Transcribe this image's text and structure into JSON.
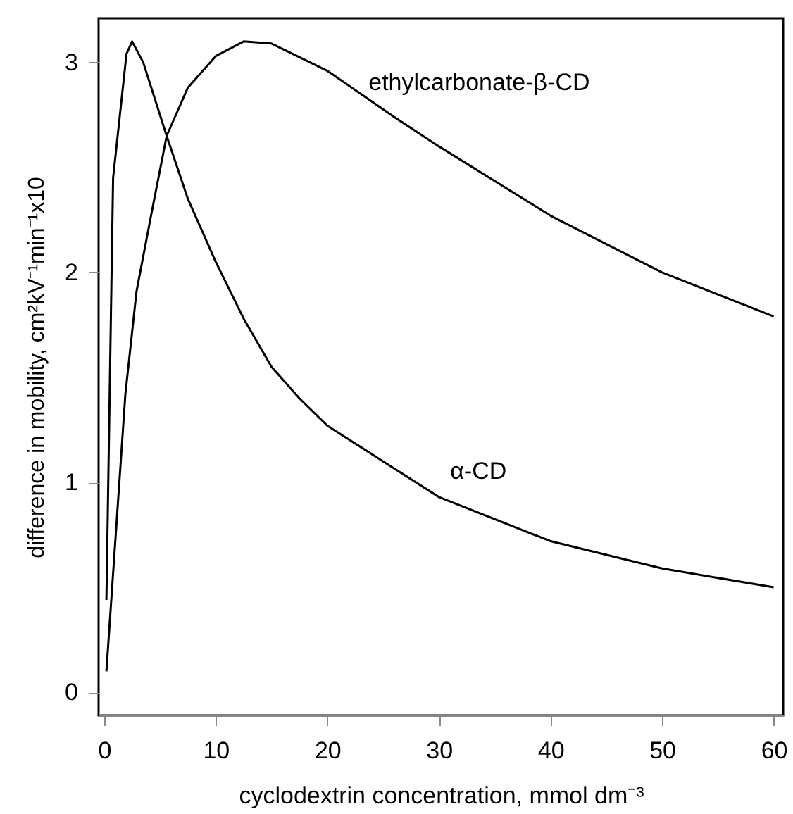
{
  "chart_data": {
    "type": "line",
    "xlabel": "cyclodextrin concentration, mmol dm⁻³",
    "ylabel": "difference in mobility, cm²kV⁻¹min⁻¹x10",
    "xlim": [
      -0.5,
      60.85
    ],
    "ylim": [
      -0.11,
      3.21
    ],
    "xticks": [
      0,
      10,
      20,
      30,
      40,
      50,
      60
    ],
    "yticks": [
      0,
      1,
      2,
      3
    ],
    "grid": false,
    "marker": "none",
    "line_style": "solid",
    "series": [
      {
        "name": "α-CD",
        "color": "#000000",
        "x": [
          0.2,
          0.8,
          2,
          2.5,
          3.5,
          5.6,
          7.5,
          10,
          12.5,
          15,
          17.5,
          20,
          25,
          30,
          40,
          50,
          60
        ],
        "values": [
          0.44,
          2.45,
          3.04,
          3.1,
          3.0,
          2.65,
          2.35,
          2.05,
          1.78,
          1.55,
          1.4,
          1.27,
          1.1,
          0.93,
          0.72,
          0.59,
          0.5
        ]
      },
      {
        "name": "ethylcarbonate-β-CD",
        "color": "#000000",
        "x": [
          0.2,
          1.9,
          2.9,
          4.2,
          5.6,
          7.5,
          10,
          12.5,
          15,
          20,
          26,
          30,
          40,
          50,
          60
        ],
        "values": [
          0.1,
          1.42,
          1.91,
          2.27,
          2.65,
          2.88,
          3.03,
          3.1,
          3.09,
          2.96,
          2.74,
          2.6,
          2.27,
          2.0,
          1.79
        ]
      }
    ]
  }
}
